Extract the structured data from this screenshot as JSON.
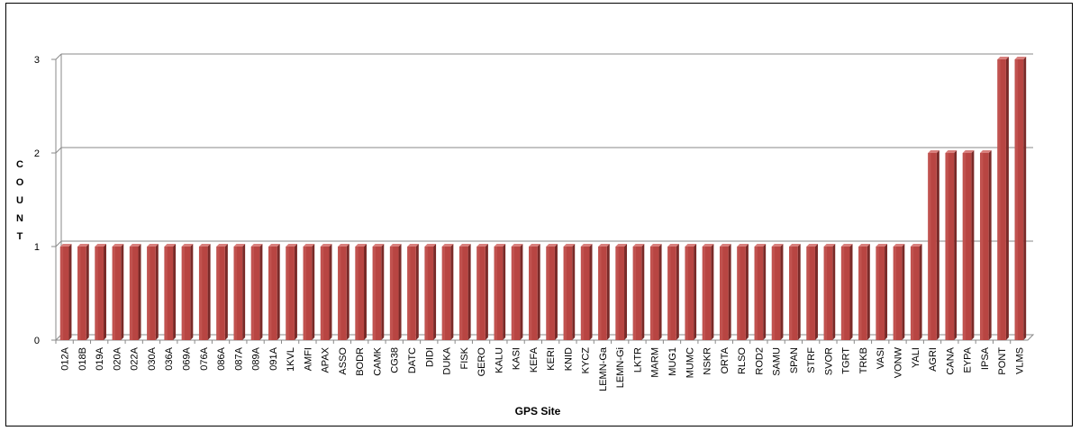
{
  "chart_data": {
    "type": "bar",
    "title": "",
    "xlabel": "GPS Site",
    "ylabel": "COUNT",
    "ylim": [
      0,
      3
    ],
    "yticks": [
      "0",
      "1",
      "2",
      "3"
    ],
    "grid": true,
    "bar_color": "#b84542",
    "categories": [
      "012A",
      "018B",
      "019A",
      "020A",
      "022A",
      "030A",
      "036A",
      "069A",
      "076A",
      "086A",
      "087A",
      "089A",
      "091A",
      "1KVL",
      "AMFI",
      "APAX",
      "ASSO",
      "BODR",
      "CAMK",
      "CG38",
      "DATC",
      "DIDI",
      "DUKA",
      "FISK",
      "GERO",
      "KALU",
      "KASI",
      "KEFA",
      "KERI",
      "KNID",
      "KYCZ",
      "LEMN-Ga",
      "LEMN-Gi",
      "LKTR",
      "MARM",
      "MUG1",
      "MUMC",
      "NSKR",
      "ORTA",
      "RLSO",
      "ROD2",
      "SAMU",
      "SPAN",
      "STRF",
      "SVOR",
      "TGRT",
      "TRKB",
      "VASI",
      "VONW",
      "YALI",
      "AGRI",
      "CANA",
      "EYPA",
      "IPSA",
      "PONT",
      "VLMS"
    ],
    "values": [
      1,
      1,
      1,
      1,
      1,
      1,
      1,
      1,
      1,
      1,
      1,
      1,
      1,
      1,
      1,
      1,
      1,
      1,
      1,
      1,
      1,
      1,
      1,
      1,
      1,
      1,
      1,
      1,
      1,
      1,
      1,
      1,
      1,
      1,
      1,
      1,
      1,
      1,
      1,
      1,
      1,
      1,
      1,
      1,
      1,
      1,
      1,
      1,
      1,
      1,
      2,
      2,
      2,
      2,
      3,
      3
    ]
  }
}
